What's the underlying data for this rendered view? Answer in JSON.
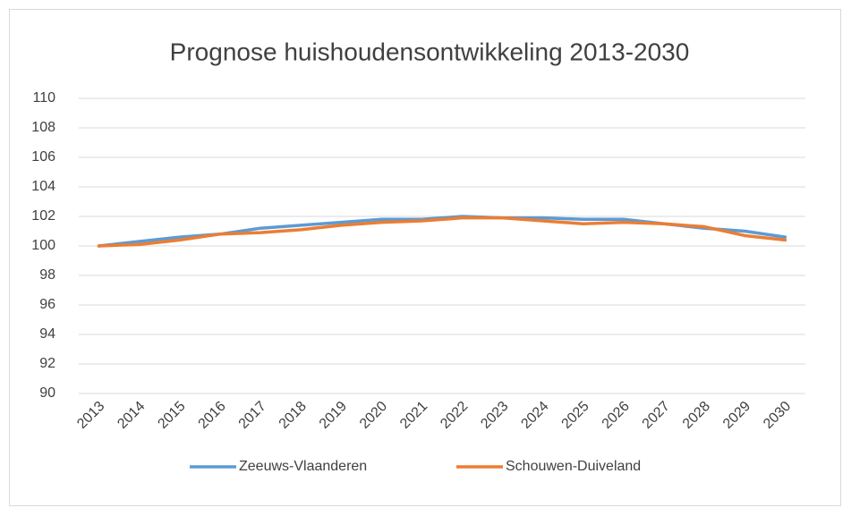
{
  "chart_data": {
    "type": "line",
    "title": "Prognose huishoudensontwikkeling 2013-2030",
    "categories": [
      "2013",
      "2014",
      "2015",
      "2016",
      "2017",
      "2018",
      "2019",
      "2020",
      "2021",
      "2022",
      "2023",
      "2024",
      "2025",
      "2026",
      "2027",
      "2028",
      "2029",
      "2030"
    ],
    "series": [
      {
        "name": "Zeeuws-Vlaanderen",
        "color": "#5b9bd5",
        "values": [
          100,
          100.3,
          100.6,
          100.8,
          101.2,
          101.4,
          101.6,
          101.8,
          101.8,
          102.0,
          101.9,
          101.9,
          101.8,
          101.8,
          101.5,
          101.2,
          101.0,
          100.6
        ]
      },
      {
        "name": "Schouwen-Duiveland",
        "color": "#ed7d31",
        "values": [
          100,
          100.1,
          100.4,
          100.8,
          100.9,
          101.1,
          101.4,
          101.6,
          101.7,
          101.9,
          101.9,
          101.7,
          101.5,
          101.6,
          101.5,
          101.3,
          100.7,
          100.4
        ]
      }
    ],
    "ylim": [
      90,
      110
    ],
    "yticks": [
      90,
      92,
      94,
      96,
      98,
      100,
      102,
      104,
      106,
      108,
      110
    ],
    "grid": true,
    "legend": "bottom"
  }
}
